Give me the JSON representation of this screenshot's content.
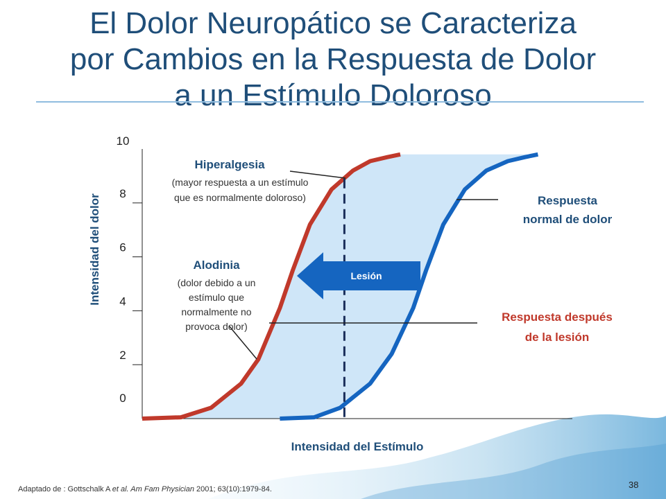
{
  "slide": {
    "title_lines": [
      "El Dolor Neuropático se Caracteriza",
      "por Cambios en la Respuesta de Dolor",
      "a un Estímulo Doloroso"
    ],
    "footer_prefix": "Adaptado de : Gottschalk A ",
    "footer_italic": "et al. Am Fam Physician",
    "footer_suffix": " 2001; 63(10):1979-84.",
    "page_number": "38"
  },
  "chart_data": {
    "type": "line",
    "title": "",
    "xlabel": "Intensidad del Estímulo",
    "ylabel": "Intensidad del dolor",
    "ylim": [
      0,
      10
    ],
    "xlim": [
      0,
      10
    ],
    "y_ticks": [
      "0",
      "2",
      "4",
      "6",
      "8",
      "10"
    ],
    "grid": false,
    "series": [
      {
        "name": "Respuesta después de la lesión",
        "color": "#c0392b",
        "points": [
          [
            0,
            0
          ],
          [
            0.9,
            0.05
          ],
          [
            1.6,
            0.4
          ],
          [
            2.3,
            1.3
          ],
          [
            2.7,
            2.2
          ],
          [
            3.2,
            4.1
          ],
          [
            3.5,
            5.5
          ],
          [
            3.9,
            7.2
          ],
          [
            4.4,
            8.5
          ],
          [
            4.9,
            9.2
          ],
          [
            5.3,
            9.55
          ],
          [
            5.7,
            9.7
          ],
          [
            6.0,
            9.8
          ]
        ]
      },
      {
        "name": "Respuesta normal de dolor",
        "color": "#1565c0",
        "points": [
          [
            3.2,
            0
          ],
          [
            4.0,
            0.05
          ],
          [
            4.6,
            0.4
          ],
          [
            5.3,
            1.3
          ],
          [
            5.8,
            2.4
          ],
          [
            6.3,
            4.1
          ],
          [
            6.6,
            5.5
          ],
          [
            7.0,
            7.2
          ],
          [
            7.5,
            8.5
          ],
          [
            8.0,
            9.2
          ],
          [
            8.5,
            9.55
          ],
          [
            8.9,
            9.7
          ],
          [
            9.2,
            9.8
          ]
        ]
      }
    ],
    "shading": {
      "color": "#cfe6f8",
      "top_y": 9.8
    },
    "dashed_line_x": 4.7,
    "arrow": {
      "label": "Lesión",
      "color": "#1565c0"
    },
    "annotations": {
      "hiperalgesia": {
        "title": "Hiperalgesia",
        "lines": [
          "(mayor respuesta a un estímulo",
          "que es normalmente doloroso)"
        ]
      },
      "alodinia": {
        "title": "Alodinia",
        "lines": [
          "(dolor debido a un",
          "estímulo que",
          "normalmente no",
          "provoca dolor)"
        ]
      },
      "normal_label": [
        "Respuesta",
        "normal de dolor"
      ],
      "injured_label": [
        "Respuesta después",
        "de la lesión"
      ],
      "normal_color": "#1f4e79",
      "injured_color": "#c0392b"
    }
  }
}
